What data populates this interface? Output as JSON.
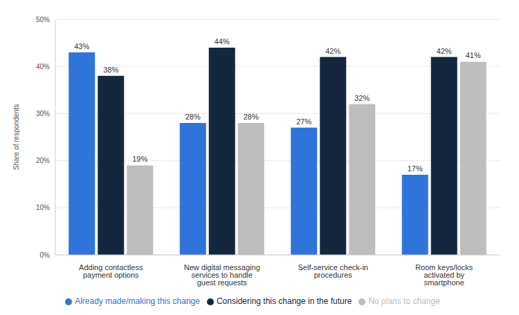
{
  "chart_data": {
    "type": "bar",
    "y_label": "Share of respondents",
    "categories": [
      "Adding contactless payment options",
      "New digital messaging services to handle guest requests",
      "Self-service check-in procedures",
      "Room keys/locks activated by smartphone"
    ],
    "series": [
      {
        "name": "Already made/making this change",
        "color": "#2f74d8",
        "values": [
          43,
          28,
          27,
          17
        ],
        "value_labels": [
          "43%",
          "28%",
          "27%",
          "17%"
        ]
      },
      {
        "name": "Considering this change in the future",
        "color": "#13283f",
        "values": [
          38,
          44,
          42,
          42
        ],
        "value_labels": [
          "38%",
          "44%",
          "42%",
          "42%"
        ]
      },
      {
        "name": "No plans to change",
        "color": "#bdbdbd",
        "values": [
          19,
          28,
          32,
          41
        ],
        "value_labels": [
          "19%",
          "28%",
          "32%",
          "41%"
        ]
      }
    ],
    "ylim": [
      0,
      50
    ],
    "yticks": [
      {
        "value": 0,
        "label": "0%"
      },
      {
        "value": 10,
        "label": "10%"
      },
      {
        "value": 20,
        "label": "20%"
      },
      {
        "value": 30,
        "label": "30%"
      },
      {
        "value": 40,
        "label": "40%"
      },
      {
        "value": 50,
        "label": "50%"
      }
    ],
    "grid": true,
    "legend": "bottom",
    "data_labels": true
  }
}
